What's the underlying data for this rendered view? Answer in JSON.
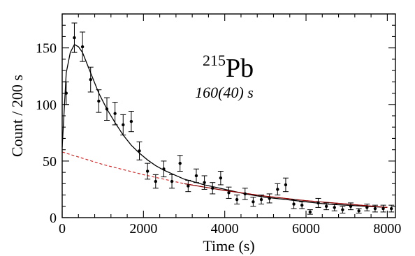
{
  "chart_data": {
    "type": "scatter",
    "xlabel": "Time (s)",
    "ylabel": "Count / 200 s",
    "xlim": [
      0,
      8200
    ],
    "ylim": [
      0,
      180
    ],
    "xticks": [
      0,
      2000,
      4000,
      6000,
      8000
    ],
    "yticks": [
      0,
      50,
      100,
      150
    ],
    "xtick_labels": [
      "0",
      "2000",
      "4000",
      "6000",
      "8000"
    ],
    "ytick_labels": [
      "0",
      "50",
      "100",
      "150"
    ],
    "annotation": {
      "mass_number": "215",
      "element": "Pb",
      "half_life": "160(40) s"
    },
    "series": [
      {
        "kind": "data_points_with_errors",
        "color": "#000000",
        "points": [
          {
            "x": 100,
            "y": 110,
            "err": 10
          },
          {
            "x": 300,
            "y": 159,
            "err": 13
          },
          {
            "x": 500,
            "y": 151,
            "err": 13
          },
          {
            "x": 700,
            "y": 122,
            "err": 11
          },
          {
            "x": 900,
            "y": 103,
            "err": 10
          },
          {
            "x": 1100,
            "y": 96,
            "err": 10
          },
          {
            "x": 1300,
            "y": 92,
            "err": 10
          },
          {
            "x": 1500,
            "y": 82,
            "err": 9
          },
          {
            "x": 1700,
            "y": 85,
            "err": 9
          },
          {
            "x": 1900,
            "y": 59,
            "err": 8
          },
          {
            "x": 2100,
            "y": 41,
            "err": 7
          },
          {
            "x": 2300,
            "y": 32,
            "err": 6
          },
          {
            "x": 2500,
            "y": 43,
            "err": 7
          },
          {
            "x": 2700,
            "y": 32,
            "err": 6
          },
          {
            "x": 2900,
            "y": 48,
            "err": 7
          },
          {
            "x": 3100,
            "y": 28,
            "err": 5
          },
          {
            "x": 3300,
            "y": 37,
            "err": 6
          },
          {
            "x": 3500,
            "y": 31,
            "err": 6
          },
          {
            "x": 3700,
            "y": 26,
            "err": 5
          },
          {
            "x": 3900,
            "y": 35,
            "err": 6
          },
          {
            "x": 4100,
            "y": 22,
            "err": 5
          },
          {
            "x": 4300,
            "y": 16,
            "err": 4
          },
          {
            "x": 4500,
            "y": 21,
            "err": 5
          },
          {
            "x": 4700,
            "y": 14,
            "err": 4
          },
          {
            "x": 4900,
            "y": 16,
            "err": 4
          },
          {
            "x": 5100,
            "y": 17,
            "err": 4
          },
          {
            "x": 5300,
            "y": 25,
            "err": 5
          },
          {
            "x": 5500,
            "y": 29,
            "err": 6
          },
          {
            "x": 5700,
            "y": 12,
            "err": 4
          },
          {
            "x": 5900,
            "y": 11,
            "err": 3
          },
          {
            "x": 6100,
            "y": 5,
            "err": 2
          },
          {
            "x": 6300,
            "y": 13,
            "err": 4
          },
          {
            "x": 6500,
            "y": 10,
            "err": 3
          },
          {
            "x": 6700,
            "y": 9,
            "err": 3
          },
          {
            "x": 6900,
            "y": 7,
            "err": 3
          },
          {
            "x": 7100,
            "y": 10,
            "err": 3
          },
          {
            "x": 7300,
            "y": 6,
            "err": 2
          },
          {
            "x": 7500,
            "y": 9,
            "err": 3
          },
          {
            "x": 7700,
            "y": 8,
            "err": 3
          },
          {
            "x": 7900,
            "y": 8,
            "err": 3
          },
          {
            "x": 8100,
            "y": 8,
            "err": 3
          }
        ]
      },
      {
        "kind": "total_fit",
        "color": "#000000",
        "style": "solid",
        "points": [
          [
            0,
            62
          ],
          [
            100,
            128
          ],
          [
            200,
            146
          ],
          [
            300,
            153
          ],
          [
            400,
            151
          ],
          [
            500,
            146
          ],
          [
            700,
            128
          ],
          [
            900,
            110
          ],
          [
            1100,
            96
          ],
          [
            1300,
            84
          ],
          [
            1500,
            73
          ],
          [
            1700,
            64
          ],
          [
            1900,
            57
          ],
          [
            2100,
            51
          ],
          [
            2300,
            46
          ],
          [
            2500,
            42
          ],
          [
            3000,
            34
          ],
          [
            3500,
            29
          ],
          [
            4000,
            25
          ],
          [
            4500,
            21
          ],
          [
            5000,
            18
          ],
          [
            5500,
            16
          ],
          [
            6000,
            14
          ],
          [
            6500,
            12
          ],
          [
            7000,
            11
          ],
          [
            7500,
            10
          ],
          [
            8000,
            9
          ]
        ]
      },
      {
        "kind": "background_component",
        "color": "#d62728",
        "style": "dashed",
        "points": [
          [
            0,
            58
          ],
          [
            1000,
            47
          ],
          [
            2000,
            38
          ],
          [
            3000,
            30
          ],
          [
            4000,
            24
          ],
          [
            5000,
            19
          ],
          [
            6000,
            15
          ],
          [
            7000,
            12
          ],
          [
            8000,
            9
          ]
        ]
      },
      {
        "kind": "fit_tail_overlay",
        "color": "#8b0000",
        "style": "solid",
        "points": [
          [
            3000,
            30
          ],
          [
            4000,
            24
          ],
          [
            5000,
            19
          ],
          [
            6000,
            15
          ],
          [
            7000,
            12
          ],
          [
            8000,
            9
          ]
        ]
      }
    ]
  }
}
